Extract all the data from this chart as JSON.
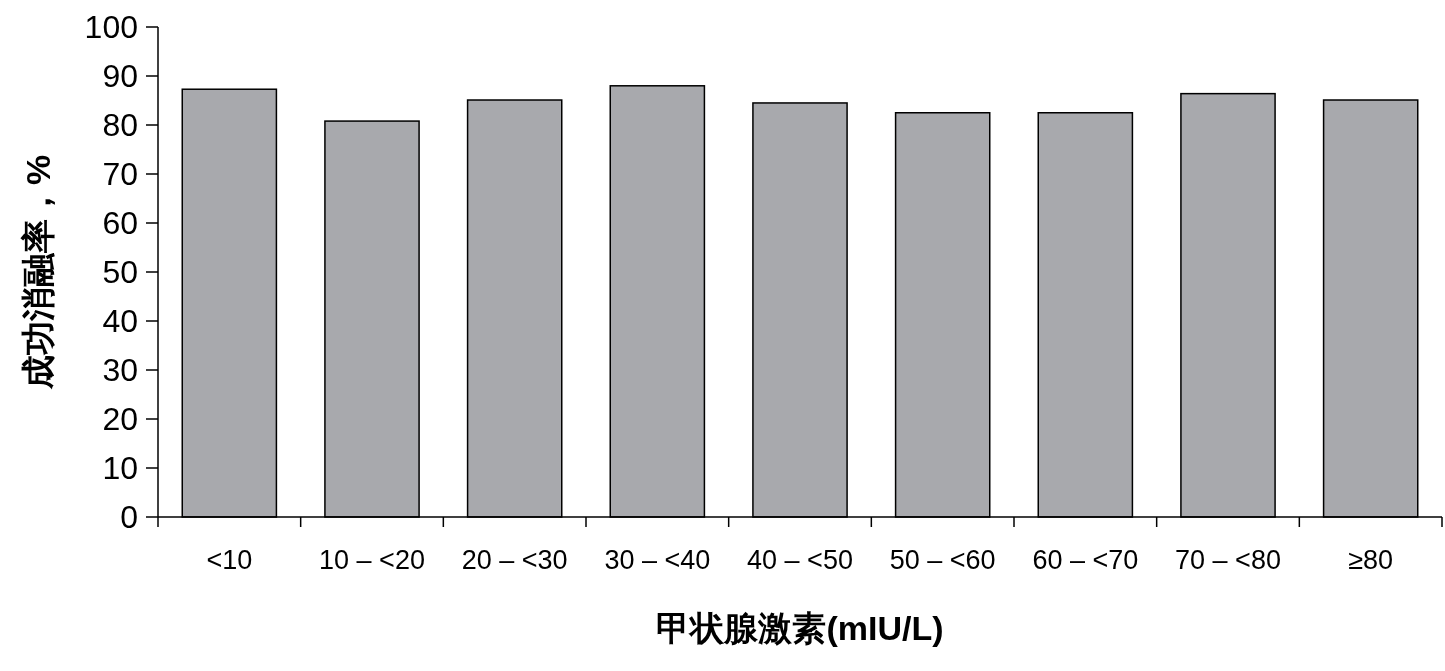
{
  "chart_data": {
    "type": "bar",
    "xlabel": "甲状腺激素(mIU/L)",
    "ylabel": "成功消融率，%",
    "categories": [
      "<10",
      "10 – <20",
      "20 – <30",
      "30 – <40",
      "40 – <50",
      "50 – <60",
      "60 – <70",
      "70 – <80",
      "≥80"
    ],
    "values": [
      87.3,
      80.8,
      85.1,
      88.0,
      84.5,
      82.5,
      82.5,
      86.4,
      85.1
    ],
    "color": "#a8a9ad",
    "ylim": [
      0,
      100
    ],
    "yticks": [
      0,
      10,
      20,
      30,
      40,
      50,
      60,
      70,
      80,
      90,
      100
    ]
  }
}
